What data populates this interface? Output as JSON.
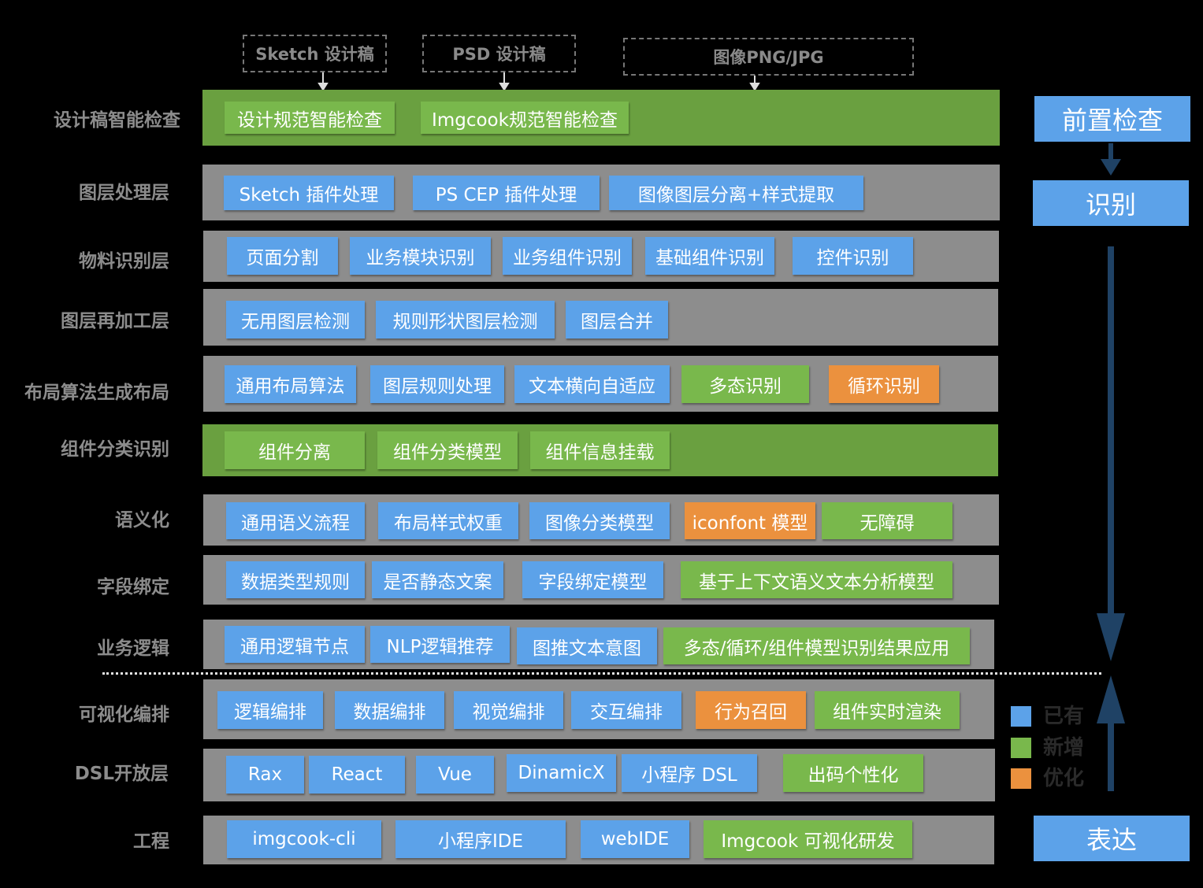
{
  "colors": {
    "existing": "#5ca2e9",
    "new": "#79b84c",
    "optimized": "#eb913e",
    "row_gray": "#8d8d8d",
    "row_green": "#6aa040",
    "flow_arrow": "#1f4265"
  },
  "sources": [
    "Sketch 设计稿",
    "PSD 设计稿",
    "图像PNG/JPG"
  ],
  "layers": [
    {
      "label": "设计稿智能检查",
      "chips": [
        {
          "text": "设计规范智能检查",
          "kind": "new"
        },
        {
          "text": "Imgcook规范智能检查",
          "kind": "new"
        }
      ]
    },
    {
      "label": "图层处理层",
      "chips": [
        {
          "text": "Sketch 插件处理",
          "kind": "existing"
        },
        {
          "text": "PS CEP 插件处理",
          "kind": "existing"
        },
        {
          "text": "图像图层分离+样式提取",
          "kind": "existing"
        }
      ]
    },
    {
      "label": "物料识别层",
      "chips": [
        {
          "text": "页面分割",
          "kind": "existing"
        },
        {
          "text": "业务模块识别",
          "kind": "existing"
        },
        {
          "text": "业务组件识别",
          "kind": "existing"
        },
        {
          "text": "基础组件识别",
          "kind": "existing"
        },
        {
          "text": "控件识别",
          "kind": "existing"
        }
      ]
    },
    {
      "label": "图层再加工层",
      "chips": [
        {
          "text": "无用图层检测",
          "kind": "existing"
        },
        {
          "text": "规则形状图层检测",
          "kind": "existing"
        },
        {
          "text": "图层合并",
          "kind": "existing"
        }
      ]
    },
    {
      "label": "布局算法生成布局",
      "chips": [
        {
          "text": "通用布局算法",
          "kind": "existing"
        },
        {
          "text": "图层规则处理",
          "kind": "existing"
        },
        {
          "text": "文本横向自适应",
          "kind": "existing"
        },
        {
          "text": "多态识别",
          "kind": "new"
        },
        {
          "text": "循环识别",
          "kind": "optimized"
        }
      ]
    },
    {
      "label": "组件分类识别",
      "chips": [
        {
          "text": "组件分离",
          "kind": "new"
        },
        {
          "text": "组件分类模型",
          "kind": "new"
        },
        {
          "text": "组件信息挂载",
          "kind": "new"
        }
      ]
    },
    {
      "label": "语义化",
      "chips": [
        {
          "text": "通用语义流程",
          "kind": "existing"
        },
        {
          "text": "布局样式权重",
          "kind": "existing"
        },
        {
          "text": "图像分类模型",
          "kind": "existing"
        },
        {
          "text": "iconfont 模型",
          "kind": "optimized"
        },
        {
          "text": "无障碍",
          "kind": "new"
        }
      ]
    },
    {
      "label": "字段绑定",
      "chips": [
        {
          "text": "数据类型规则",
          "kind": "existing"
        },
        {
          "text": "是否静态文案",
          "kind": "existing"
        },
        {
          "text": "字段绑定模型",
          "kind": "existing"
        },
        {
          "text": "基于上下文语义文本分析模型",
          "kind": "new"
        }
      ]
    },
    {
      "label": "业务逻辑",
      "chips": [
        {
          "text": "通用逻辑节点",
          "kind": "existing"
        },
        {
          "text": "NLP逻辑推荐",
          "kind": "existing"
        },
        {
          "text": "图推文本意图",
          "kind": "existing"
        },
        {
          "text": "多态/循环/组件模型识别结果应用",
          "kind": "new"
        }
      ]
    },
    {
      "label": "可视化编排",
      "chips": [
        {
          "text": "逻辑编排",
          "kind": "existing"
        },
        {
          "text": "数据编排",
          "kind": "existing"
        },
        {
          "text": "视觉编排",
          "kind": "existing"
        },
        {
          "text": "交互编排",
          "kind": "existing"
        },
        {
          "text": "行为召回",
          "kind": "optimized"
        },
        {
          "text": "组件实时渲染",
          "kind": "new"
        }
      ]
    },
    {
      "label": "DSL开放层",
      "chips": [
        {
          "text": "Rax",
          "kind": "existing"
        },
        {
          "text": "React",
          "kind": "existing"
        },
        {
          "text": "Vue",
          "kind": "existing"
        },
        {
          "text": "DinamicX",
          "kind": "existing"
        },
        {
          "text": "小程序 DSL",
          "kind": "existing"
        },
        {
          "text": "出码个性化",
          "kind": "new"
        }
      ]
    },
    {
      "label": "工程",
      "chips": [
        {
          "text": "imgcook-cli",
          "kind": "existing"
        },
        {
          "text": "小程序IDE",
          "kind": "existing"
        },
        {
          "text": "webIDE",
          "kind": "existing"
        },
        {
          "text": "Imgcook 可视化研发",
          "kind": "new"
        }
      ]
    }
  ],
  "stages": [
    "前置检查",
    "识别",
    "表达"
  ],
  "legend": [
    {
      "text": "已有",
      "kind": "existing"
    },
    {
      "text": "新增",
      "kind": "new"
    },
    {
      "text": "优化",
      "kind": "optimized"
    }
  ]
}
